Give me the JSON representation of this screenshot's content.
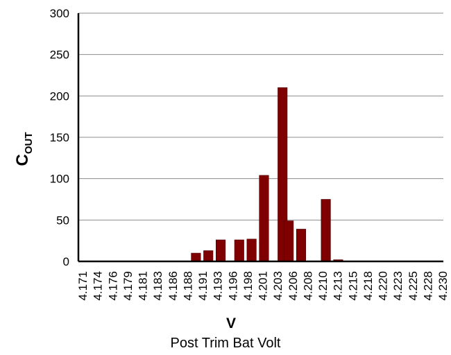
{
  "chart_data": {
    "type": "bar",
    "categories": [
      "4.171",
      "4.174",
      "4.176",
      "4.179",
      "4.181",
      "4.183",
      "4.186",
      "4.188",
      "4.191",
      "4.193",
      "4.196",
      "4.198",
      "4.201",
      "4.203",
      "4.206",
      "4.208",
      "4.210",
      "4.213",
      "4.215",
      "4.218",
      "4.220",
      "4.223",
      "4.225",
      "4.228",
      "4.230"
    ],
    "half_step_values": [
      0,
      0,
      0,
      0,
      0,
      0,
      0,
      0,
      0,
      0,
      0,
      0,
      0,
      0,
      0,
      0,
      0,
      0,
      0,
      0,
      0,
      0,
      0,
      0,
      0,
      0,
      0,
      0,
      0,
      0,
      0,
      0,
      0,
      0,
      0,
      0,
      0,
      0,
      0,
      0,
      0,
      0,
      0,
      0,
      0,
      0,
      0,
      0,
      0,
      0,
      0,
      0,
      0,
      0,
      0,
      0,
      0,
      0,
      0,
      0,
      0,
      0,
      0,
      0,
      0,
      0,
      0,
      0,
      0,
      0,
      0,
      0,
      0,
      0,
      0,
      0,
      0,
      0,
      0,
      0,
      0,
      0,
      0,
      0,
      0,
      0,
      0,
      0,
      0,
      0,
      0,
      0,
      0,
      0,
      0,
      0,
      0,
      0,
      0,
      0,
      0,
      0,
      0,
      0,
      0,
      0,
      0,
      0,
      0,
      0,
      0,
      0,
      0,
      0,
      0,
      0,
      0,
      0,
      0,
      0,
      0,
      0,
      0,
      0,
      0,
      0,
      0,
      0,
      0,
      0,
      0,
      0,
      0,
      0,
      0,
      0,
      0,
      0,
      0,
      0,
      0,
      0,
      0,
      0,
      0,
      0,
      0,
      0,
      0,
      0
    ],
    "x": [
      4.19,
      4.192,
      4.194,
      4.197,
      4.199,
      4.201,
      4.204,
      4.205,
      4.207,
      4.211,
      4.213
    ],
    "values": [
      10,
      13,
      26,
      26,
      27,
      104,
      210,
      49,
      39,
      75,
      2
    ],
    "bar_color": "#7f0000",
    "xlabel": "V",
    "ylabel_main": "C",
    "ylabel_sub": "OUT",
    "caption": "Post Trim Bat Volt",
    "ylim": [
      0,
      300
    ],
    "yticks": [
      0,
      50,
      100,
      150,
      200,
      250,
      300
    ],
    "grid": true
  }
}
